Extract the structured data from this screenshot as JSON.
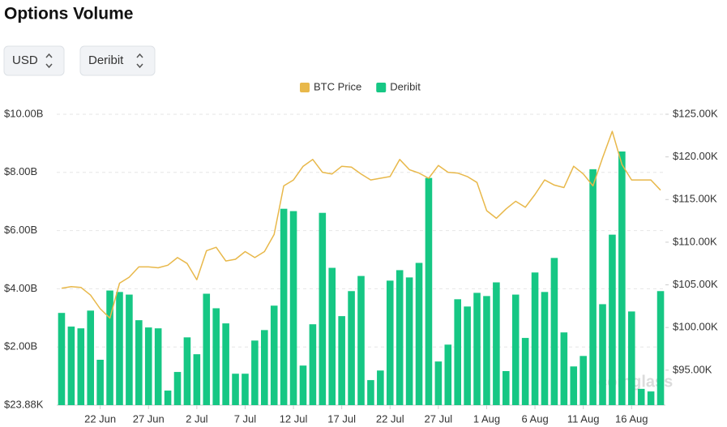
{
  "title": "Options Volume",
  "controls": [
    "USD",
    "Deribit"
  ],
  "watermark": "coinglass",
  "chart_data": {
    "type": "bar-line",
    "categories": [
      null,
      null,
      null,
      null,
      "22 Jun",
      null,
      null,
      null,
      null,
      "27 Jun",
      null,
      null,
      null,
      null,
      "2 Jul",
      null,
      null,
      null,
      null,
      "7 Jul",
      null,
      null,
      null,
      null,
      "12 Jul",
      null,
      null,
      null,
      null,
      "17 Jul",
      null,
      null,
      null,
      null,
      "22 Jul",
      null,
      null,
      null,
      null,
      "27 Jul",
      null,
      null,
      null,
      null,
      "1 Aug",
      null,
      null,
      null,
      null,
      "6 Aug",
      null,
      null,
      null,
      null,
      "11 Aug",
      null,
      null,
      null,
      null,
      "16 Aug",
      null,
      null,
      null
    ],
    "series": [
      {
        "name": "Deribit",
        "type": "bar",
        "color": "#16c784",
        "values": [
          3170000000,
          2700000000,
          2640000000,
          3250000000,
          1560000000,
          3940000000,
          3890000000,
          3800000000,
          2920000000,
          2670000000,
          2640000000,
          500000000,
          1140000000,
          2330000000,
          1750000000,
          3830000000,
          3330000000,
          2810000000,
          1080000000,
          1080000000,
          2220000000,
          2580000000,
          3420000000,
          6750000000,
          6670000000,
          1360000000,
          2780000000,
          6610000000,
          4720000000,
          3060000000,
          3920000000,
          4440000000,
          860000000,
          1190000000,
          4280000000,
          4640000000,
          4390000000,
          4890000000,
          7810000000,
          1500000000,
          2080000000,
          3640000000,
          3390000000,
          3860000000,
          3750000000,
          4220000000,
          1170000000,
          3800000000,
          2310000000,
          4560000000,
          3890000000,
          5060000000,
          2500000000,
          1330000000,
          1690000000,
          8110000000,
          3470000000,
          5860000000,
          8720000000,
          3220000000,
          560000000,
          470000000,
          3920000000
        ]
      },
      {
        "name": "BTC Price",
        "type": "line",
        "axis": "y2",
        "color": "#e8b84a",
        "values": [
          104600,
          104800,
          104700,
          103800,
          102200,
          101100,
          105200,
          105900,
          107100,
          107100,
          107000,
          107300,
          108200,
          107500,
          105600,
          109000,
          109400,
          107800,
          108000,
          108900,
          108200,
          108900,
          110900,
          116600,
          117300,
          118900,
          119700,
          118200,
          118000,
          118900,
          118800,
          118000,
          117300,
          117500,
          117700,
          119700,
          118500,
          118100,
          117500,
          119000,
          118200,
          118100,
          117700,
          117000,
          113700,
          112800,
          113900,
          114800,
          114100,
          115600,
          117300,
          116700,
          116400,
          118900,
          118000,
          116600,
          119900,
          123000,
          119100,
          117300,
          117300,
          117300,
          116100
        ]
      }
    ],
    "ylim": [
      23880,
      10000000000
    ],
    "yticks": [
      {
        "value": 23880,
        "label": "$23.88K"
      },
      {
        "value": 2000000000,
        "label": "$2.00B"
      },
      {
        "value": 4000000000,
        "label": "$4.00B"
      },
      {
        "value": 6000000000,
        "label": "$6.00B"
      },
      {
        "value": 8000000000,
        "label": "$8.00B"
      },
      {
        "value": 10000000000,
        "label": "$10.00B"
      }
    ],
    "y2lim": [
      90900,
      125000
    ],
    "y2ticks": [
      {
        "value": 95000,
        "label": "$95.00K"
      },
      {
        "value": 100000,
        "label": "$100.00K"
      },
      {
        "value": 105000,
        "label": "$105.00K"
      },
      {
        "value": 110000,
        "label": "$110.00K"
      },
      {
        "value": 115000,
        "label": "$115.00K"
      },
      {
        "value": 120000,
        "label": "$120.00K"
      },
      {
        "value": 125000,
        "label": "$125.00K"
      }
    ],
    "grid": true,
    "legend": "top"
  }
}
